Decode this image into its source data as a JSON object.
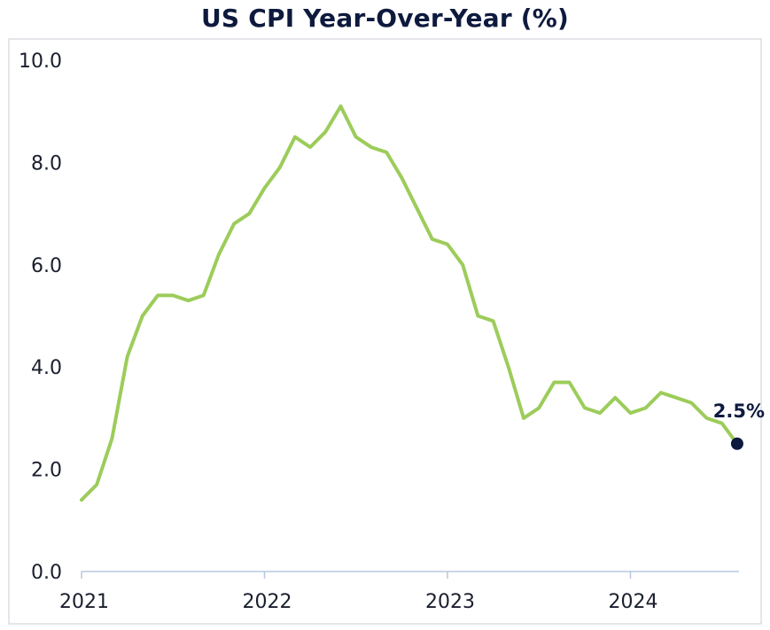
{
  "chart_data": {
    "type": "line",
    "title": "US CPI Year-Over-Year (%)",
    "xlabel": "",
    "ylabel": "",
    "ylim": [
      0,
      10
    ],
    "y_ticks": [
      "0.0",
      "2.0",
      "4.0",
      "6.0",
      "8.0",
      "10.0"
    ],
    "x_ticks": [
      "2021",
      "2022",
      "2023",
      "2024"
    ],
    "grid": false,
    "line_color": "#9ccc5a",
    "marker_color": "#0e1a3d",
    "series": [
      {
        "x": [
          "2021-01",
          "2021-02",
          "2021-03",
          "2021-04",
          "2021-05",
          "2021-06",
          "2021-07",
          "2021-08",
          "2021-09",
          "2021-10",
          "2021-11",
          "2021-12",
          "2022-01",
          "2022-02",
          "2022-03",
          "2022-04",
          "2022-05",
          "2022-06",
          "2022-07",
          "2022-08",
          "2022-09",
          "2022-10",
          "2022-11",
          "2022-12",
          "2023-01",
          "2023-02",
          "2023-03",
          "2023-04",
          "2023-05",
          "2023-06",
          "2023-07",
          "2023-08",
          "2023-09",
          "2023-10",
          "2023-11",
          "2023-12",
          "2024-01",
          "2024-02",
          "2024-03",
          "2024-04",
          "2024-05",
          "2024-06",
          "2024-07",
          "2024-08"
        ],
        "values": [
          1.4,
          1.7,
          2.6,
          4.2,
          5.0,
          5.4,
          5.4,
          5.3,
          5.4,
          6.2,
          6.8,
          7.0,
          7.5,
          7.9,
          8.5,
          8.3,
          8.6,
          9.1,
          8.5,
          8.3,
          8.2,
          7.7,
          7.1,
          6.5,
          6.4,
          6.0,
          5.0,
          4.9,
          4.0,
          3.0,
          3.2,
          3.7,
          3.7,
          3.2,
          3.1,
          3.4,
          3.1,
          3.2,
          3.5,
          3.4,
          3.3,
          3.0,
          2.9,
          2.5
        ]
      }
    ],
    "annotation": {
      "label": "2.5%",
      "x": "2024-08",
      "value": 2.5
    }
  }
}
